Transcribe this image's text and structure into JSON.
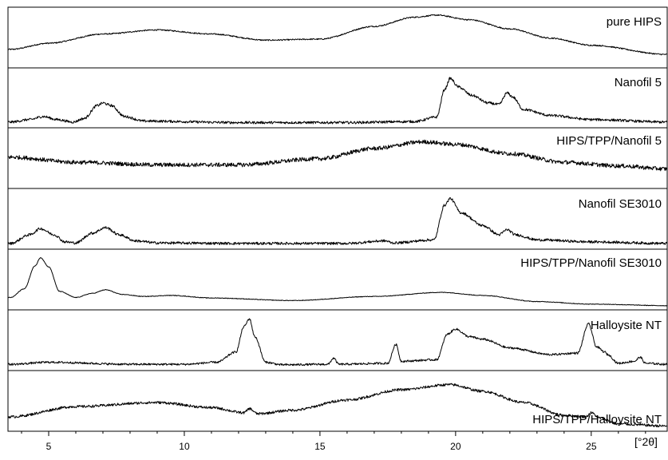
{
  "chart_data": {
    "type": "line",
    "xlabel": "",
    "x_unit_label": "[°2θ]",
    "xlim": [
      3.5,
      27.8
    ],
    "x_ticks": [
      5,
      10,
      15,
      20,
      25
    ],
    "x_tick_labels": [
      "5",
      "10",
      "15",
      "20",
      "25"
    ],
    "y_axis": "none (stacked XRD patterns, arbitrary intensity)",
    "grid": false,
    "legend": "none (panel labels at right of each trace)",
    "line_color": "#000000",
    "panels": [
      {
        "name": "pure HIPS",
        "noise": 0.012,
        "points": [
          [
            3.6,
            0.3
          ],
          [
            5,
            0.42
          ],
          [
            7,
            0.6
          ],
          [
            9,
            0.68
          ],
          [
            11,
            0.6
          ],
          [
            13,
            0.48
          ],
          [
            15,
            0.5
          ],
          [
            17,
            0.75
          ],
          [
            18.5,
            0.93
          ],
          [
            19.3,
            0.97
          ],
          [
            20.5,
            0.88
          ],
          [
            22,
            0.7
          ],
          [
            23.5,
            0.52
          ],
          [
            25,
            0.38
          ],
          [
            27.8,
            0.2
          ]
        ]
      },
      {
        "name": "Nanofil 5",
        "noise": 0.025,
        "points": [
          [
            3.6,
            0.05
          ],
          [
            4.3,
            0.1
          ],
          [
            4.8,
            0.16
          ],
          [
            5.3,
            0.1
          ],
          [
            5.9,
            0.05
          ],
          [
            6.3,
            0.12
          ],
          [
            6.8,
            0.38
          ],
          [
            7.0,
            0.43
          ],
          [
            7.3,
            0.38
          ],
          [
            7.8,
            0.16
          ],
          [
            8.5,
            0.07
          ],
          [
            12,
            0.04
          ],
          [
            16,
            0.04
          ],
          [
            18.5,
            0.06
          ],
          [
            19.3,
            0.15
          ],
          [
            19.6,
            0.7
          ],
          [
            19.8,
            0.92
          ],
          [
            20.1,
            0.75
          ],
          [
            20.6,
            0.58
          ],
          [
            21.2,
            0.43
          ],
          [
            21.6,
            0.4
          ],
          [
            21.9,
            0.63
          ],
          [
            22.1,
            0.55
          ],
          [
            22.5,
            0.3
          ],
          [
            23.5,
            0.18
          ],
          [
            25,
            0.1
          ],
          [
            27.8,
            0.05
          ]
        ]
      },
      {
        "name": "HIPS/TPP/Nanofil 5",
        "noise": 0.04,
        "points": [
          [
            3.6,
            0.55
          ],
          [
            6,
            0.45
          ],
          [
            9,
            0.4
          ],
          [
            12,
            0.4
          ],
          [
            15,
            0.52
          ],
          [
            17,
            0.72
          ],
          [
            18.8,
            0.85
          ],
          [
            20,
            0.8
          ],
          [
            22,
            0.62
          ],
          [
            24,
            0.45
          ],
          [
            26,
            0.38
          ],
          [
            27.8,
            0.32
          ]
        ]
      },
      {
        "name": "Nanofil SE3010",
        "noise": 0.025,
        "points": [
          [
            3.6,
            0.05
          ],
          [
            4.3,
            0.22
          ],
          [
            4.7,
            0.34
          ],
          [
            5.2,
            0.22
          ],
          [
            5.6,
            0.08
          ],
          [
            6.0,
            0.06
          ],
          [
            6.6,
            0.25
          ],
          [
            7.1,
            0.36
          ],
          [
            7.6,
            0.22
          ],
          [
            8.2,
            0.1
          ],
          [
            9,
            0.06
          ],
          [
            12,
            0.05
          ],
          [
            16,
            0.05
          ],
          [
            17.4,
            0.1
          ],
          [
            17.7,
            0.06
          ],
          [
            19.2,
            0.12
          ],
          [
            19.6,
            0.8
          ],
          [
            19.8,
            0.93
          ],
          [
            20.2,
            0.65
          ],
          [
            21.0,
            0.4
          ],
          [
            21.6,
            0.22
          ],
          [
            21.9,
            0.32
          ],
          [
            22.2,
            0.22
          ],
          [
            23,
            0.12
          ],
          [
            25,
            0.08
          ],
          [
            27.8,
            0.05
          ]
        ]
      },
      {
        "name": "HIPS/TPP/Nanofil SE3010",
        "noise": 0.006,
        "points": [
          [
            3.6,
            0.18
          ],
          [
            4.1,
            0.35
          ],
          [
            4.5,
            0.8
          ],
          [
            4.7,
            0.96
          ],
          [
            5.0,
            0.78
          ],
          [
            5.4,
            0.3
          ],
          [
            6.0,
            0.18
          ],
          [
            6.6,
            0.26
          ],
          [
            7.1,
            0.33
          ],
          [
            7.7,
            0.24
          ],
          [
            8.5,
            0.2
          ],
          [
            9.5,
            0.22
          ],
          [
            11,
            0.17
          ],
          [
            14,
            0.12
          ],
          [
            17,
            0.2
          ],
          [
            19.5,
            0.28
          ],
          [
            21,
            0.22
          ],
          [
            23,
            0.1
          ],
          [
            25,
            0.05
          ],
          [
            27.8,
            0.02
          ]
        ]
      },
      {
        "name": "Halloysite NT",
        "noise": 0.02,
        "points": [
          [
            3.6,
            0.06
          ],
          [
            5,
            0.1
          ],
          [
            8,
            0.06
          ],
          [
            10,
            0.06
          ],
          [
            11.2,
            0.1
          ],
          [
            11.9,
            0.3
          ],
          [
            12.2,
            0.8
          ],
          [
            12.4,
            0.95
          ],
          [
            12.6,
            0.6
          ],
          [
            13.0,
            0.1
          ],
          [
            13.6,
            0.05
          ],
          [
            15.3,
            0.06
          ],
          [
            15.5,
            0.18
          ],
          [
            15.7,
            0.06
          ],
          [
            17.5,
            0.08
          ],
          [
            17.8,
            0.45
          ],
          [
            18.0,
            0.12
          ],
          [
            19.3,
            0.15
          ],
          [
            19.7,
            0.65
          ],
          [
            20.0,
            0.75
          ],
          [
            20.5,
            0.6
          ],
          [
            21.0,
            0.55
          ],
          [
            22.0,
            0.38
          ],
          [
            23.5,
            0.25
          ],
          [
            24.5,
            0.28
          ],
          [
            24.9,
            0.85
          ],
          [
            25.2,
            0.4
          ],
          [
            25.5,
            0.3
          ],
          [
            25.6,
            0.25
          ],
          [
            26.0,
            0.08
          ],
          [
            26.6,
            0.12
          ],
          [
            26.8,
            0.2
          ],
          [
            27.0,
            0.08
          ],
          [
            27.8,
            0.06
          ]
        ]
      },
      {
        "name": "HIPS/TPP/Halloysite NT",
        "noise": 0.025,
        "points": [
          [
            3.6,
            0.22
          ],
          [
            6,
            0.42
          ],
          [
            9,
            0.5
          ],
          [
            11,
            0.4
          ],
          [
            12.2,
            0.3
          ],
          [
            12.4,
            0.38
          ],
          [
            12.7,
            0.28
          ],
          [
            14,
            0.35
          ],
          [
            16,
            0.55
          ],
          [
            18,
            0.75
          ],
          [
            19.8,
            0.85
          ],
          [
            21,
            0.72
          ],
          [
            22.5,
            0.5
          ],
          [
            24,
            0.25
          ],
          [
            24.8,
            0.22
          ],
          [
            25,
            0.3
          ],
          [
            25.3,
            0.2
          ],
          [
            26,
            0.08
          ],
          [
            27.8,
            0.04
          ]
        ]
      }
    ]
  }
}
